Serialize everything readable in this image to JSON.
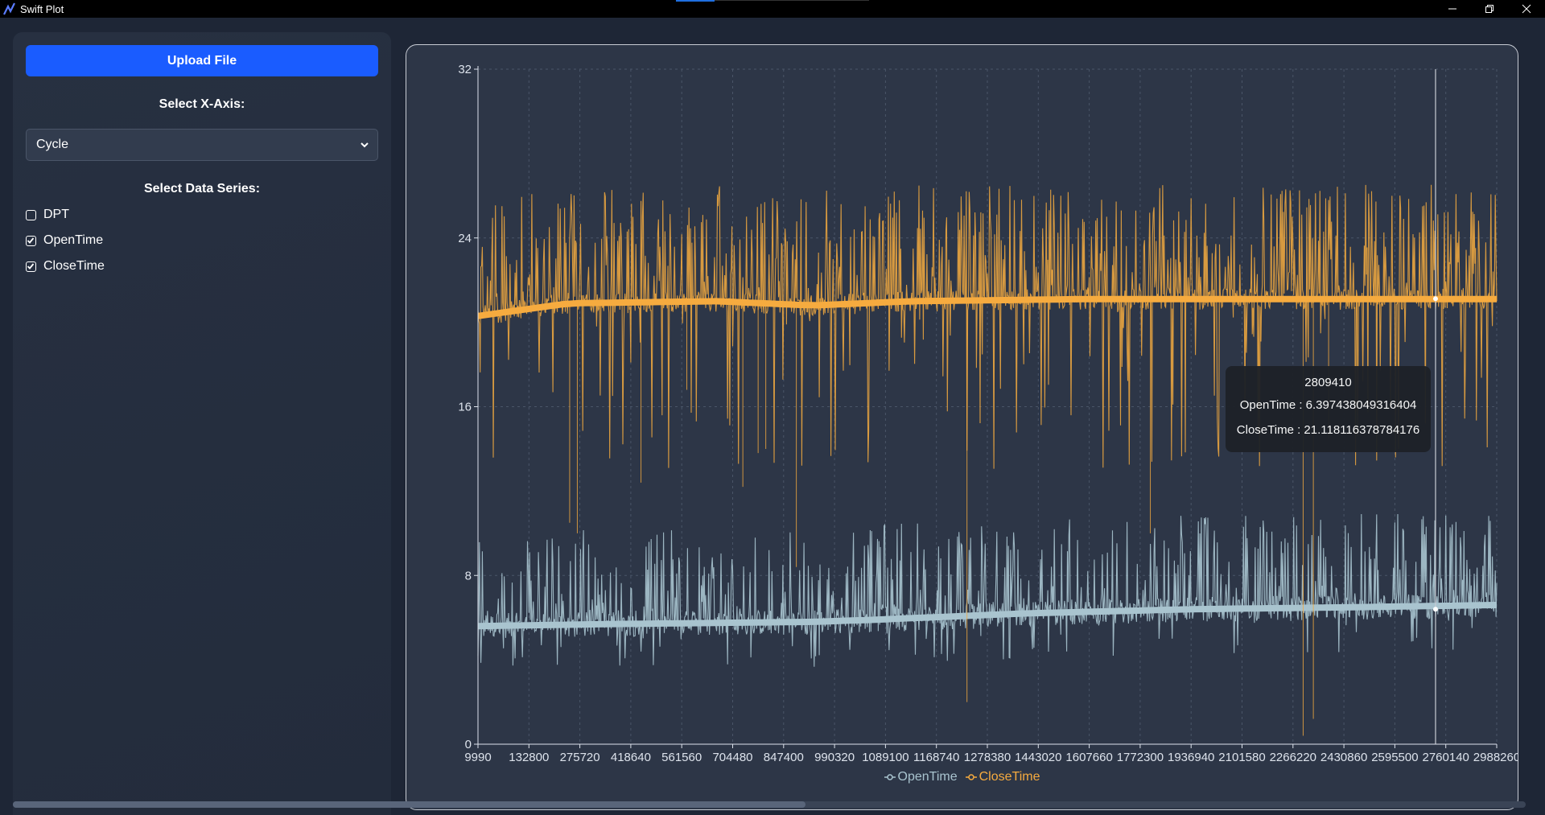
{
  "window": {
    "title": "Swift Plot"
  },
  "sidebar": {
    "upload_label": "Upload File",
    "xaxis_label": "Select X-Axis:",
    "xaxis_selected": "Cycle",
    "series_label": "Select Data Series:",
    "series": [
      {
        "label": "DPT",
        "checked": false
      },
      {
        "label": "OpenTime",
        "checked": true
      },
      {
        "label": "CloseTime",
        "checked": true
      }
    ]
  },
  "colors": {
    "open_time": "#a9c4cf",
    "close_time": "#f6ab3f",
    "accent": "#1a5cff"
  },
  "chart_data": {
    "type": "line",
    "title": "",
    "xlabel": "",
    "ylabel": "",
    "ylim": [
      0,
      32
    ],
    "y_ticks": [
      0,
      8,
      16,
      24,
      32
    ],
    "x_ticks": [
      "9990",
      "132800",
      "275720",
      "418640",
      "561560",
      "704480",
      "847400",
      "990320",
      "1089100",
      "1168740",
      "1278380",
      "1443020",
      "1607660",
      "1772300",
      "1936940",
      "2101580",
      "2266220",
      "2430860",
      "2595500",
      "2760140",
      "2988260"
    ],
    "grid": true,
    "legend": "bottom",
    "series": [
      {
        "name": "OpenTime",
        "color": "#a9c4cf",
        "baseline_x": [
          9990,
          418640,
          990320,
          1168740,
          1607660,
          2101580,
          2595500,
          2988260
        ],
        "baseline_y": [
          5.6,
          5.7,
          5.8,
          5.9,
          6.2,
          6.4,
          6.5,
          6.6
        ]
      },
      {
        "name": "CloseTime",
        "color": "#f6ab3f",
        "baseline_x": [
          9990,
          275720,
          704480,
          990320,
          1278380,
          1772300,
          2430860,
          2988260
        ],
        "baseline_y": [
          20.3,
          20.9,
          21.0,
          20.8,
          21.0,
          21.1,
          21.1,
          21.1
        ]
      }
    ],
    "cursor_x": 2809410,
    "tooltip": {
      "x_value": "2809410",
      "open_line": "OpenTime : 6.397438049316404",
      "close_line": "CloseTime : 21.118116378784176"
    }
  },
  "legend": {
    "open_label": "OpenTime",
    "close_label": "CloseTime"
  }
}
